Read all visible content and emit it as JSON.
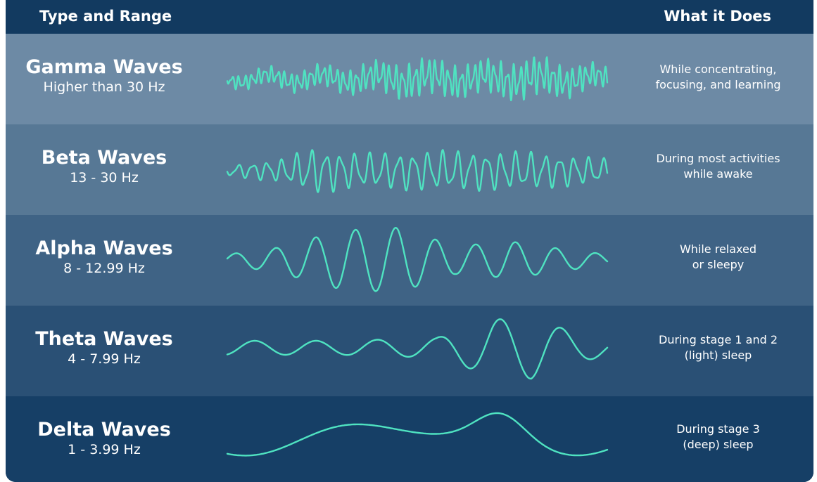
{
  "header": {
    "left_title": "Type and Range",
    "right_title": "What it Does"
  },
  "colors": {
    "wave": "#4fe3c1",
    "header_bg": "#123a60",
    "text": "#ffffff",
    "row_backgrounds": [
      "#6d8aa5",
      "#577895",
      "#3f6385",
      "#2a5075",
      "#163f66"
    ]
  },
  "waves": [
    {
      "name": "Gamma Waves",
      "range": "Higher than 30 Hz",
      "description_line1": "While concentrating,",
      "description_line2": "focusing, and learning"
    },
    {
      "name": "Beta Waves",
      "range": "13 - 30 Hz",
      "description_line1": "During most activities",
      "description_line2": "while awake"
    },
    {
      "name": "Alpha Waves",
      "range": "8 - 12.99 Hz",
      "description_line1": "While relaxed",
      "description_line2": "or sleepy"
    },
    {
      "name": "Theta Waves",
      "range": "4 - 7.99 Hz",
      "description_line1": "During stage 1 and 2",
      "description_line2": "(light) sleep"
    },
    {
      "name": "Delta Waves",
      "range": "1 - 3.99 Hz",
      "description_line1": "During stage 3",
      "description_line2": "(deep) sleep"
    }
  ]
}
